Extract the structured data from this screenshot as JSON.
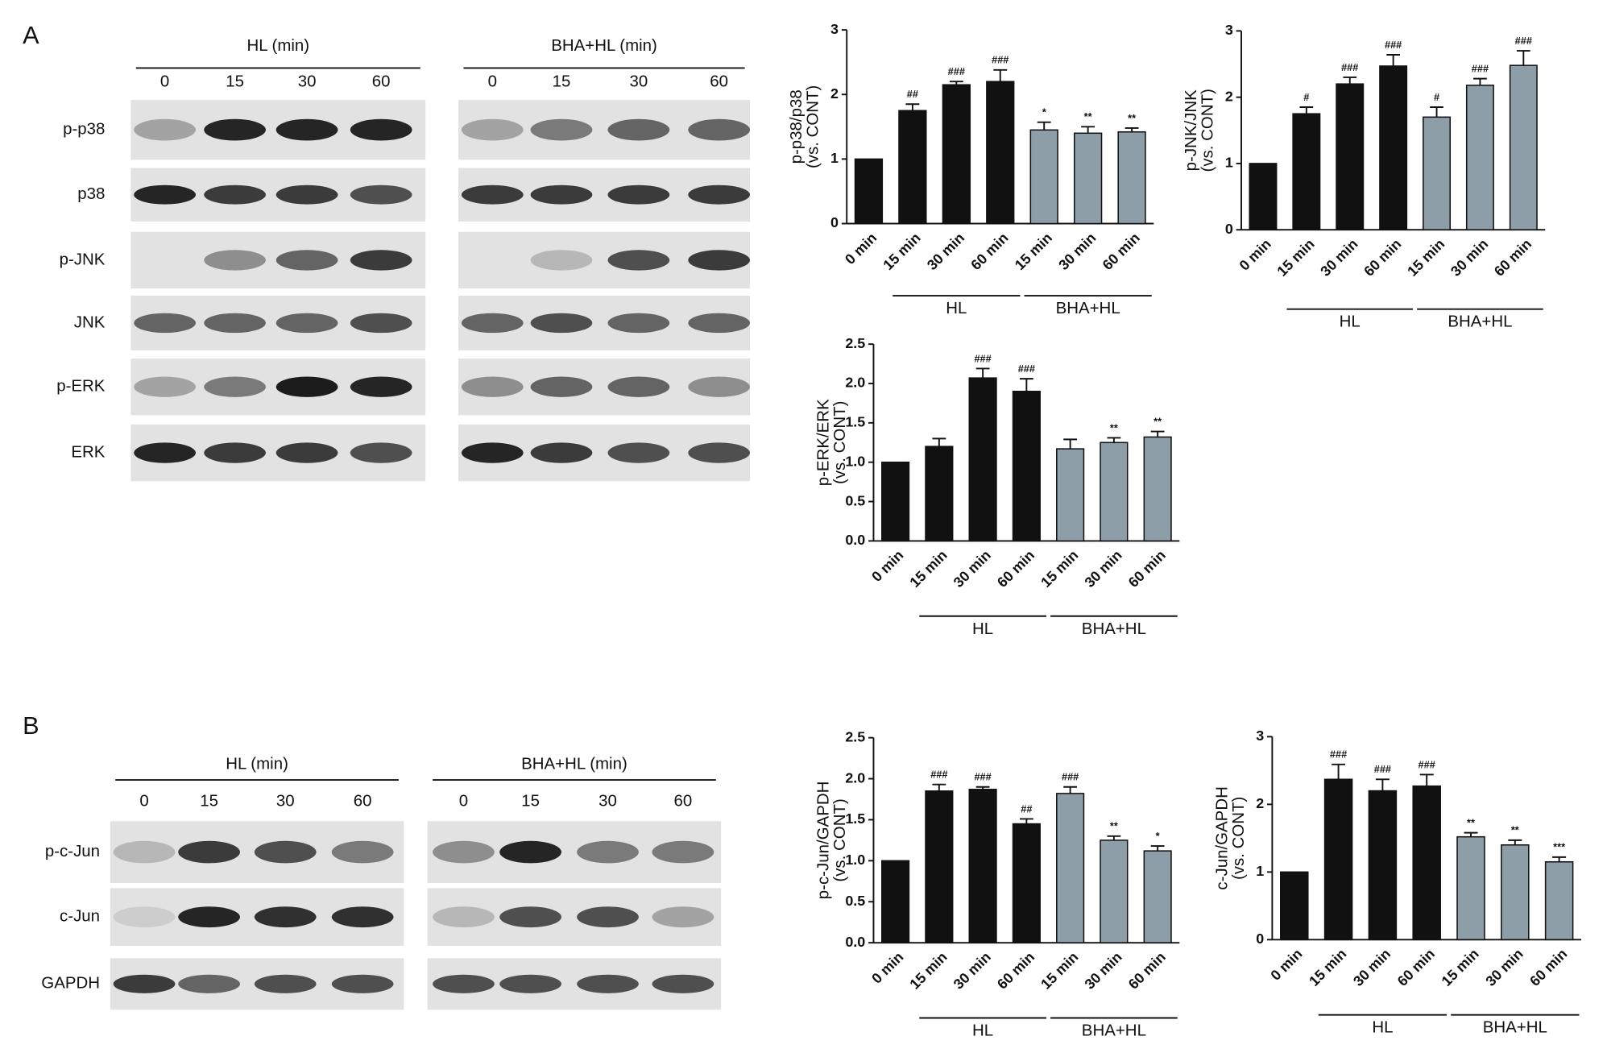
{
  "panel_labels": [
    "A",
    "B"
  ],
  "blots": [
    {
      "headers": [
        "HL (min)",
        "BHA+HL (min)"
      ],
      "lanes": [
        "0",
        "15",
        "30",
        "60"
      ],
      "rows": [
        "p-p38",
        "p38",
        "p-JNK",
        "JNK",
        "p-ERK",
        "ERK"
      ]
    },
    {
      "headers": [
        "HL (min)",
        "BHA+HL (min)"
      ],
      "lanes": [
        "0",
        "15",
        "30",
        "60"
      ],
      "rows": [
        "p-c-Jun",
        "c-Jun",
        "GAPDH"
      ]
    }
  ],
  "chart_data": [
    {
      "type": "bar",
      "ylabel": "p-p38/p38",
      "ylabel_sub": "(vs. CONT)",
      "categories": [
        "0 min",
        "15 min",
        "30 min",
        "60 min",
        "15 min",
        "30 min",
        "60 min"
      ],
      "values": [
        1,
        1.75,
        2.15,
        2.2,
        1.45,
        1.4,
        1.42
      ],
      "errors": [
        null,
        0.1,
        0.05,
        0.18,
        0.12,
        0.1,
        0.06
      ],
      "annotations": [
        null,
        "##",
        "###",
        "###",
        "*",
        "**",
        "**"
      ],
      "colors": [
        "#111111",
        "#111111",
        "#111111",
        "#111111",
        "#8e9ea9",
        "#8e9ea9",
        "#8e9ea9"
      ],
      "groups": [
        "HL",
        "BHA+HL"
      ],
      "ylim": [
        0,
        3
      ],
      "yticks": [
        0,
        1,
        2,
        3
      ]
    },
    {
      "type": "bar",
      "ylabel": "p-JNK/JNK",
      "ylabel_sub": "(vs. CONT)",
      "categories": [
        "0 min",
        "15 min",
        "30 min",
        "60 min",
        "15 min",
        "30 min",
        "60 min"
      ],
      "values": [
        1,
        1.75,
        2.2,
        2.47,
        1.7,
        2.18,
        2.48
      ],
      "errors": [
        null,
        0.1,
        0.1,
        0.17,
        0.15,
        0.1,
        0.22
      ],
      "annotations": [
        null,
        "#",
        "###",
        "###",
        "#",
        "###",
        "###"
      ],
      "colors": [
        "#111111",
        "#111111",
        "#111111",
        "#111111",
        "#8e9ea9",
        "#8e9ea9",
        "#8e9ea9"
      ],
      "groups": [
        "HL",
        "BHA+HL"
      ],
      "ylim": [
        0,
        3
      ],
      "yticks": [
        0,
        1,
        2,
        3
      ]
    },
    {
      "type": "bar",
      "ylabel": "p-ERK/ERK",
      "ylabel_sub": "(vs. CONT)",
      "categories": [
        "0 min",
        "15 min",
        "30 min",
        "60 min",
        "15 min",
        "30 min",
        "60 min"
      ],
      "values": [
        1,
        1.2,
        2.07,
        1.9,
        1.17,
        1.25,
        1.32
      ],
      "errors": [
        null,
        0.1,
        0.12,
        0.16,
        0.12,
        0.06,
        0.07
      ],
      "annotations": [
        null,
        null,
        "###",
        "###",
        null,
        "**",
        "**"
      ],
      "colors": [
        "#111111",
        "#111111",
        "#111111",
        "#111111",
        "#8e9ea9",
        "#8e9ea9",
        "#8e9ea9"
      ],
      "groups": [
        "HL",
        "BHA+HL"
      ],
      "ylim": [
        0,
        2.5
      ],
      "yticks": [
        {
          "value": 0,
          "label": "0.0"
        },
        0.5,
        {
          "value": 1,
          "label": "1.0"
        },
        1.5,
        {
          "value": 2,
          "label": "2.0"
        },
        2.5
      ]
    },
    {
      "type": "bar",
      "ylabel": "p-c-Jun/GAPDH",
      "ylabel_sub": "(vs. CONT)",
      "categories": [
        "0 min",
        "15 min",
        "30 min",
        "60 min",
        "15 min",
        "30 min",
        "60 min"
      ],
      "values": [
        1,
        1.85,
        1.87,
        1.45,
        1.82,
        1.25,
        1.12
      ],
      "errors": [
        null,
        0.08,
        0.03,
        0.06,
        0.08,
        0.05,
        0.06
      ],
      "annotations": [
        null,
        "###",
        "###",
        "##",
        "###",
        "**",
        "*"
      ],
      "colors": [
        "#111111",
        "#111111",
        "#111111",
        "#111111",
        "#8e9ea9",
        "#8e9ea9",
        "#8e9ea9"
      ],
      "groups": [
        "HL",
        "BHA+HL"
      ],
      "ylim": [
        0,
        2.5
      ],
      "yticks": [
        {
          "value": 0,
          "label": "0.0"
        },
        0.5,
        {
          "value": 1,
          "label": "1.0"
        },
        1.5,
        {
          "value": 2,
          "label": "2.0"
        },
        2.5
      ]
    },
    {
      "type": "bar",
      "ylabel": "c-Jun/GAPDH",
      "ylabel_sub": "(vs. CONT)",
      "categories": [
        "0 min",
        "15 min",
        "30 min",
        "60 min",
        "15 min",
        "30 min",
        "60 min"
      ],
      "values": [
        1,
        2.37,
        2.2,
        2.27,
        1.52,
        1.4,
        1.15
      ],
      "errors": [
        null,
        0.22,
        0.17,
        0.17,
        0.06,
        0.07,
        0.07
      ],
      "annotations": [
        null,
        "###",
        "###",
        "###",
        "**",
        "**",
        "***"
      ],
      "colors": [
        "#111111",
        "#111111",
        "#111111",
        "#111111",
        "#8e9ea9",
        "#8e9ea9",
        "#8e9ea9"
      ],
      "groups": [
        "HL",
        "BHA+HL"
      ],
      "ylim": [
        0,
        3
      ],
      "yticks": [
        0,
        1,
        2,
        3
      ]
    }
  ]
}
